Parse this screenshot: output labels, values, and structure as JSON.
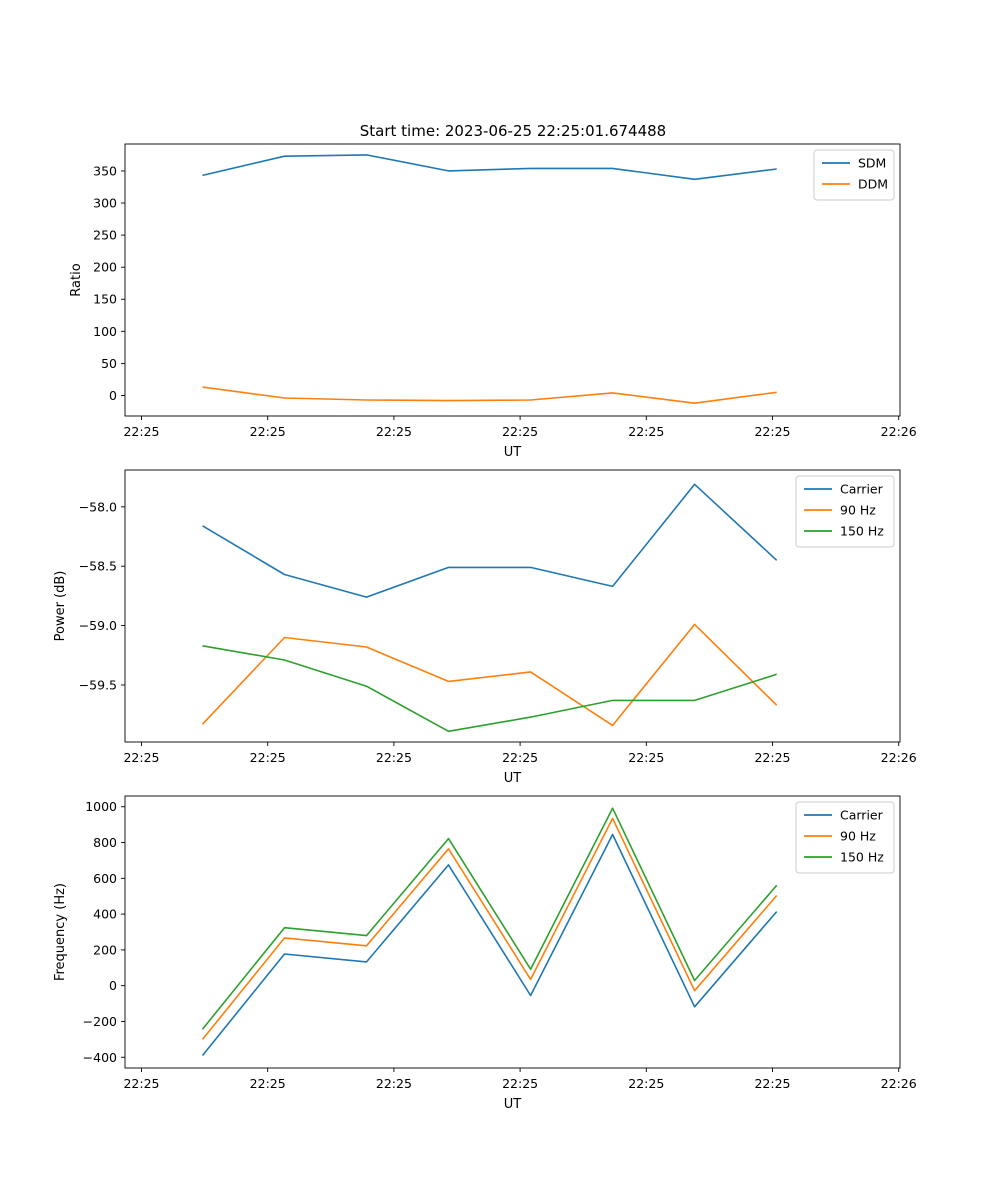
{
  "title": "Start time: 2023-06-25 22:25:01.674488",
  "chart_data": [
    {
      "type": "line",
      "xlabel": "UT",
      "ylabel": "Ratio",
      "xlim": [
        0,
        6
      ],
      "ylim": [
        -32,
        392
      ],
      "x": [
        0.483,
        1.133,
        1.783,
        2.433,
        3.083,
        3.733,
        4.383,
        5.033
      ],
      "x_ticks": [
        0.0,
        1.0,
        2.0,
        3.0,
        4.0,
        5.0,
        6.0
      ],
      "x_tick_labels": [
        "22:25",
        "22:25",
        "22:25",
        "22:25",
        "22:25",
        "22:25",
        "22:25"
      ],
      "x_tick_last_label": "22:26",
      "y_ticks": [
        0,
        50,
        100,
        150,
        200,
        250,
        300,
        350
      ],
      "y_tick_labels": [
        "0",
        "50",
        "100",
        "150",
        "200",
        "250",
        "300",
        "350"
      ],
      "legend": "top-right",
      "grid": false,
      "series": [
        {
          "name": "SDM",
          "color": "#1f77b4",
          "values": [
            343,
            373,
            375,
            350,
            354,
            354,
            337,
            353
          ]
        },
        {
          "name": "DDM",
          "color": "#ff7f0e",
          "values": [
            13,
            -4,
            -7,
            -8,
            -7,
            4,
            -12,
            5
          ]
        }
      ]
    },
    {
      "type": "line",
      "xlabel": "UT",
      "ylabel": "Power (dB)",
      "xlim": [
        0,
        6
      ],
      "ylim": [
        -59.98,
        -57.69
      ],
      "x": [
        0.483,
        1.133,
        1.783,
        2.433,
        3.083,
        3.733,
        4.383,
        5.033
      ],
      "x_ticks": [
        0.0,
        1.0,
        2.0,
        3.0,
        4.0,
        5.0,
        6.0
      ],
      "x_tick_labels": [
        "22:25",
        "22:25",
        "22:25",
        "22:25",
        "22:25",
        "22:25",
        "22:25"
      ],
      "x_tick_last_label": "22:26",
      "y_ticks": [
        -59.5,
        -59.0,
        -58.5,
        -58.0
      ],
      "y_tick_labels": [
        "−59.5",
        "−59.0",
        "−58.5",
        "−58.0"
      ],
      "legend": "top-right",
      "grid": false,
      "series": [
        {
          "name": "Carrier",
          "color": "#1f77b4",
          "values": [
            -58.16,
            -58.57,
            -58.76,
            -58.51,
            -58.51,
            -58.67,
            -57.81,
            -58.45
          ]
        },
        {
          "name": "90 Hz",
          "color": "#ff7f0e",
          "values": [
            -59.83,
            -59.1,
            -59.18,
            -59.47,
            -59.39,
            -59.84,
            -58.99,
            -59.67
          ]
        },
        {
          "name": "150 Hz",
          "color": "#2ca02c",
          "values": [
            -59.17,
            -59.29,
            -59.51,
            -59.89,
            -59.77,
            -59.63,
            -59.63,
            -59.41
          ]
        }
      ]
    },
    {
      "type": "line",
      "xlabel": "UT",
      "ylabel": "Frequency (Hz)",
      "xlim": [
        0,
        6
      ],
      "ylim": [
        -460,
        1060
      ],
      "x": [
        0.483,
        1.133,
        1.783,
        2.433,
        3.083,
        3.733,
        4.383,
        5.033
      ],
      "x_ticks": [
        0.0,
        1.0,
        2.0,
        3.0,
        4.0,
        5.0,
        6.0
      ],
      "x_tick_labels": [
        "22:25",
        "22:25",
        "22:25",
        "22:25",
        "22:25",
        "22:25",
        "22:25"
      ],
      "x_tick_last_label": "22:26",
      "y_ticks": [
        -400,
        -200,
        0,
        200,
        400,
        600,
        800,
        1000
      ],
      "y_tick_labels": [
        "−400",
        "−200",
        "0",
        "200",
        "400",
        "600",
        "800",
        "1000"
      ],
      "legend": "top-right",
      "grid": false,
      "series": [
        {
          "name": "Carrier",
          "color": "#1f77b4",
          "values": [
            -390,
            177,
            133,
            675,
            -55,
            845,
            -118,
            414
          ]
        },
        {
          "name": "90 Hz",
          "color": "#ff7f0e",
          "values": [
            -300,
            267,
            223,
            765,
            35,
            935,
            -28,
            504
          ]
        },
        {
          "name": "150 Hz",
          "color": "#2ca02c",
          "values": [
            -243,
            324,
            280,
            822,
            92,
            992,
            29,
            561
          ]
        }
      ]
    }
  ]
}
